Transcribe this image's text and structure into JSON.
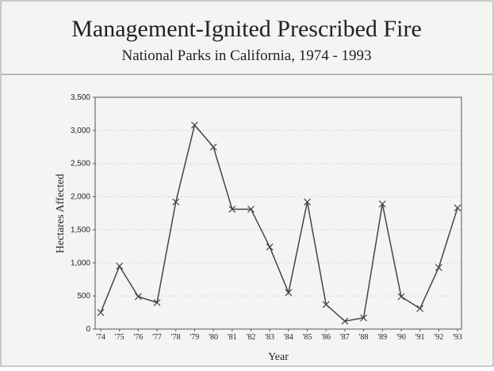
{
  "chart_data": {
    "type": "line",
    "title": "Management-Ignited Prescribed Fire",
    "subtitle": "National Parks in California, 1974 - 1993",
    "x_label": "Year",
    "y_label": "Hectares Affected",
    "categories": [
      "'74",
      "'75",
      "'76",
      "'77",
      "'78",
      "'79",
      "'80",
      "'81",
      "'82",
      "'83",
      "'84",
      "'85",
      "'86",
      "'87",
      "'88",
      "'89",
      "'90",
      "'91",
      "'92",
      "'93"
    ],
    "series": [
      {
        "name": "Hectares Affected",
        "color": "#444444",
        "values": [
          250,
          950,
          490,
          400,
          1920,
          3080,
          2750,
          1810,
          1810,
          1240,
          550,
          1920,
          370,
          120,
          170,
          1890,
          490,
          310,
          930,
          1830
        ]
      }
    ],
    "ylim": [
      0,
      3500
    ],
    "yticks": [
      0,
      500,
      {
        "value": 1000,
        "label": "1,000"
      },
      {
        "value": 1500,
        "label": "1,500"
      },
      {
        "value": 2000,
        "label": "2,000"
      },
      {
        "value": 2500,
        "label": "2,500"
      },
      {
        "value": 3000,
        "label": "3,000"
      },
      {
        "value": 3500,
        "label": "3,500"
      }
    ],
    "grid": true
  }
}
